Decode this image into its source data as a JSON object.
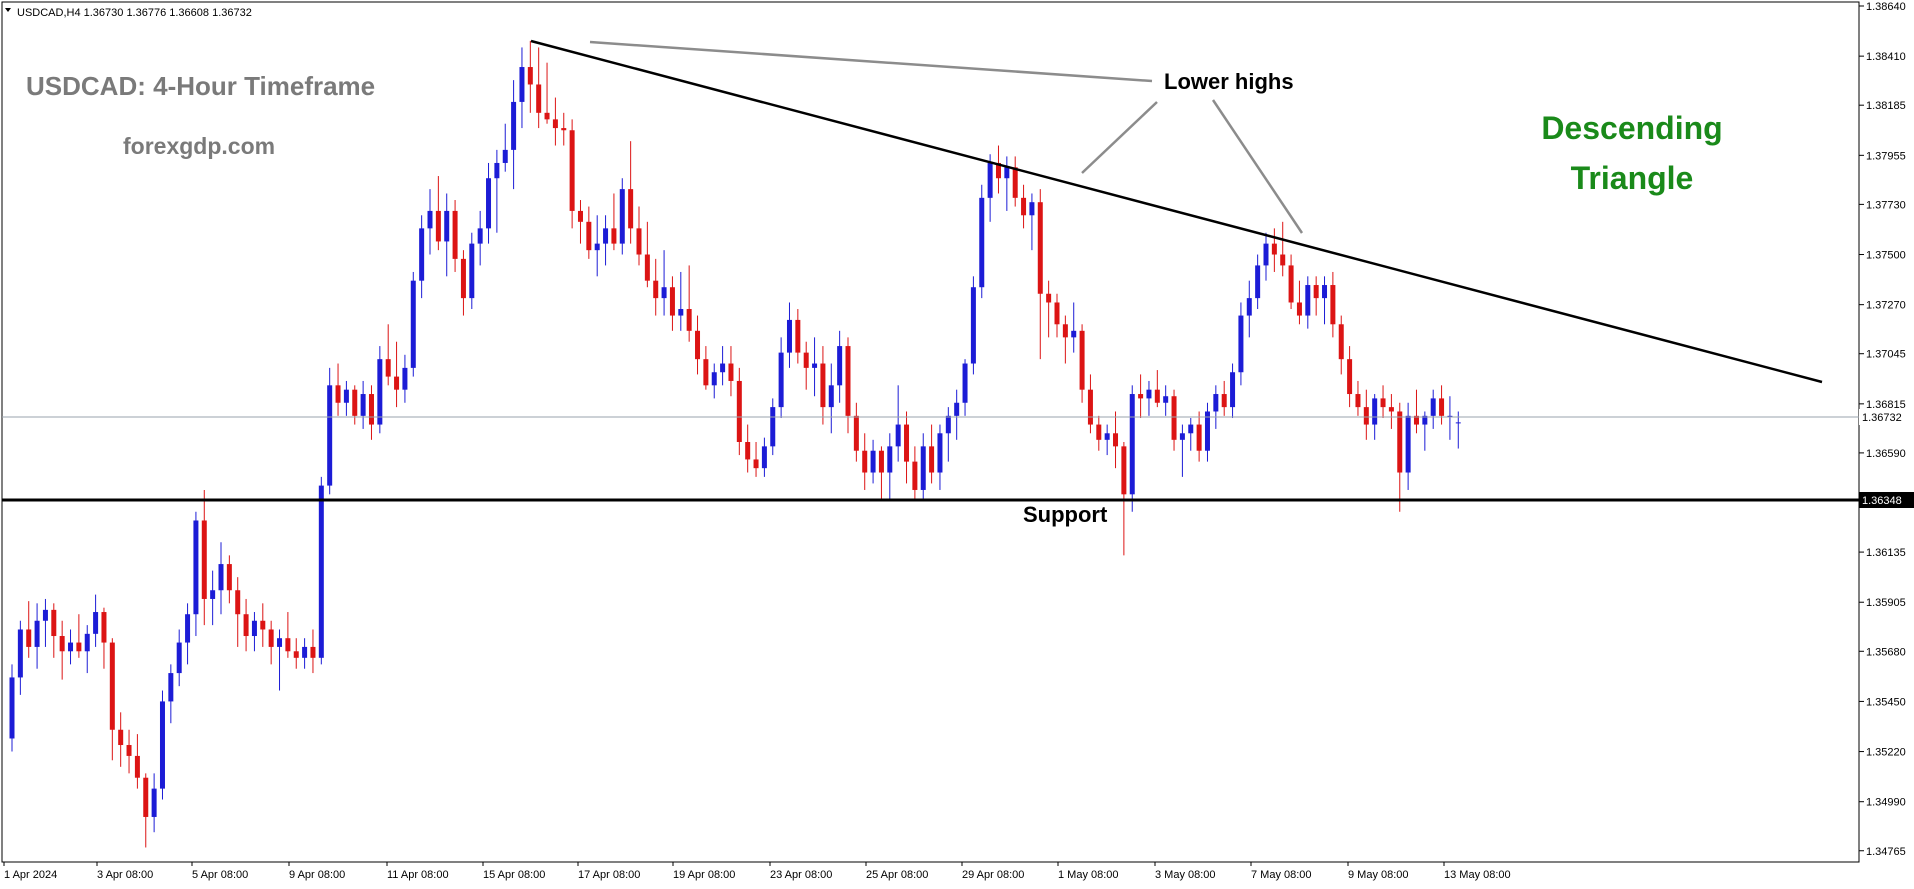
{
  "header": {
    "symbol_info": "USDCAD,H4  1.36730 1.36776 1.36608 1.36732"
  },
  "annotations": {
    "title": "USDCAD: 4-Hour Timeframe",
    "site": "forexgdp.com",
    "pattern_line1": "Descending",
    "pattern_line2": "Triangle",
    "lower_highs": "Lower highs",
    "support": "Support"
  },
  "colors": {
    "bull": "#1c1cd6",
    "bear": "#dc1414",
    "pattern_text": "#1a8a1a",
    "title_text": "#7a7a7a",
    "axis": "#000000"
  },
  "chart_data": {
    "type": "candlestick",
    "symbol": "USDCAD",
    "timeframe": "H4",
    "ylim": [
      1.3465,
      1.3865
    ],
    "y_ticks": [
      "1.38640",
      "1.38410",
      "1.38185",
      "1.37955",
      "1.37730",
      "1.37500",
      "1.37270",
      "1.37045",
      "1.36815",
      "1.36590",
      "1.36135",
      "1.35905",
      "1.35680",
      "1.35450",
      "1.35220",
      "1.34990",
      "1.34765"
    ],
    "x_ticks": [
      "1 Apr 2024",
      "3 Apr 08:00",
      "5 Apr 08:00",
      "9 Apr 08:00",
      "11 Apr 08:00",
      "15 Apr 08:00",
      "17 Apr 08:00",
      "19 Apr 08:00",
      "23 Apr 08:00",
      "25 Apr 08:00",
      "29 Apr 08:00",
      "1 May 08:00",
      "3 May 08:00",
      "7 May 08:00",
      "9 May 08:00",
      "13 May 08:00"
    ],
    "current_price": "1.36732",
    "support_level": "1.36348",
    "candles": [
      [
        1.3528,
        1.3562,
        1.3522,
        1.3556
      ],
      [
        1.3556,
        1.3582,
        1.3548,
        1.3578
      ],
      [
        1.3578,
        1.3591,
        1.3565,
        1.357
      ],
      [
        1.357,
        1.359,
        1.356,
        1.3582
      ],
      [
        1.3582,
        1.3592,
        1.357,
        1.3587
      ],
      [
        1.3587,
        1.359,
        1.3565,
        1.3575
      ],
      [
        1.3575,
        1.3582,
        1.3555,
        1.3568
      ],
      [
        1.3568,
        1.3578,
        1.3562,
        1.3572
      ],
      [
        1.3572,
        1.3585,
        1.3565,
        1.3568
      ],
      [
        1.3568,
        1.358,
        1.3558,
        1.3576
      ],
      [
        1.3576,
        1.3594,
        1.357,
        1.3586
      ],
      [
        1.3586,
        1.3588,
        1.356,
        1.3572
      ],
      [
        1.3572,
        1.3574,
        1.3518,
        1.3532
      ],
      [
        1.3532,
        1.354,
        1.3515,
        1.3525
      ],
      [
        1.3525,
        1.3532,
        1.3512,
        1.352
      ],
      [
        1.352,
        1.353,
        1.3505,
        1.351
      ],
      [
        1.351,
        1.3512,
        1.3478,
        1.3492
      ],
      [
        1.3492,
        1.3512,
        1.3485,
        1.3505
      ],
      [
        1.3505,
        1.355,
        1.35,
        1.3545
      ],
      [
        1.3545,
        1.3562,
        1.3535,
        1.3558
      ],
      [
        1.3558,
        1.3578,
        1.3552,
        1.3572
      ],
      [
        1.3572,
        1.359,
        1.3562,
        1.3585
      ],
      [
        1.3585,
        1.3632,
        1.3575,
        1.3628
      ],
      [
        1.3628,
        1.3642,
        1.358,
        1.3592
      ],
      [
        1.3592,
        1.3605,
        1.358,
        1.3596
      ],
      [
        1.3596,
        1.3618,
        1.3585,
        1.3608
      ],
      [
        1.3608,
        1.3612,
        1.359,
        1.3596
      ],
      [
        1.3596,
        1.3602,
        1.357,
        1.3585
      ],
      [
        1.3585,
        1.3592,
        1.3568,
        1.3575
      ],
      [
        1.3575,
        1.3586,
        1.3568,
        1.3582
      ],
      [
        1.3582,
        1.359,
        1.357,
        1.3578
      ],
      [
        1.3578,
        1.3582,
        1.3562,
        1.357
      ],
      [
        1.357,
        1.3578,
        1.355,
        1.3574
      ],
      [
        1.3574,
        1.3586,
        1.3565,
        1.3568
      ],
      [
        1.3568,
        1.3574,
        1.356,
        1.3565
      ],
      [
        1.3565,
        1.3574,
        1.356,
        1.357
      ],
      [
        1.357,
        1.3578,
        1.3558,
        1.3565
      ],
      [
        1.3565,
        1.3648,
        1.3562,
        1.3644
      ],
      [
        1.3644,
        1.3698,
        1.364,
        1.369
      ],
      [
        1.369,
        1.37,
        1.3676,
        1.3682
      ],
      [
        1.3682,
        1.3692,
        1.3676,
        1.3688
      ],
      [
        1.3688,
        1.369,
        1.3672,
        1.3676
      ],
      [
        1.3676,
        1.3692,
        1.367,
        1.3686
      ],
      [
        1.3686,
        1.369,
        1.3665,
        1.3672
      ],
      [
        1.3672,
        1.3708,
        1.3668,
        1.3702
      ],
      [
        1.3702,
        1.3718,
        1.369,
        1.3694
      ],
      [
        1.3694,
        1.371,
        1.368,
        1.3688
      ],
      [
        1.3688,
        1.3704,
        1.3682,
        1.3698
      ],
      [
        1.3698,
        1.3742,
        1.3694,
        1.3738
      ],
      [
        1.3738,
        1.3768,
        1.373,
        1.3762
      ],
      [
        1.3762,
        1.378,
        1.375,
        1.377
      ],
      [
        1.377,
        1.3786,
        1.3752,
        1.3756
      ],
      [
        1.3756,
        1.3778,
        1.374,
        1.377
      ],
      [
        1.377,
        1.3775,
        1.3742,
        1.3748
      ],
      [
        1.3748,
        1.3752,
        1.3722,
        1.373
      ],
      [
        1.373,
        1.376,
        1.3725,
        1.3755
      ],
      [
        1.3755,
        1.377,
        1.3745,
        1.3762
      ],
      [
        1.3762,
        1.3792,
        1.3755,
        1.3785
      ],
      [
        1.3785,
        1.3798,
        1.376,
        1.3792
      ],
      [
        1.3792,
        1.381,
        1.3788,
        1.3798
      ],
      [
        1.3798,
        1.383,
        1.378,
        1.382
      ],
      [
        1.382,
        1.3845,
        1.3808,
        1.3836
      ],
      [
        1.3836,
        1.3848,
        1.3815,
        1.3828
      ],
      [
        1.3828,
        1.3845,
        1.3808,
        1.3815
      ],
      [
        1.3815,
        1.3838,
        1.381,
        1.3812
      ],
      [
        1.3812,
        1.3822,
        1.38,
        1.3808
      ],
      [
        1.3808,
        1.3815,
        1.38,
        1.3807
      ],
      [
        1.3807,
        1.3812,
        1.3762,
        1.377
      ],
      [
        1.377,
        1.3775,
        1.3755,
        1.3765
      ],
      [
        1.3765,
        1.3772,
        1.3748,
        1.3752
      ],
      [
        1.3752,
        1.3768,
        1.374,
        1.3755
      ],
      [
        1.3755,
        1.3768,
        1.3745,
        1.3762
      ],
      [
        1.3762,
        1.3778,
        1.3752,
        1.3755
      ],
      [
        1.3755,
        1.3785,
        1.375,
        1.378
      ],
      [
        1.378,
        1.3802,
        1.3755,
        1.3762
      ],
      [
        1.3762,
        1.3772,
        1.3745,
        1.375
      ],
      [
        1.375,
        1.3765,
        1.3735,
        1.3738
      ],
      [
        1.3738,
        1.3748,
        1.3722,
        1.373
      ],
      [
        1.373,
        1.3752,
        1.3722,
        1.3735
      ],
      [
        1.3735,
        1.374,
        1.3715,
        1.3722
      ],
      [
        1.3722,
        1.3742,
        1.3715,
        1.3725
      ],
      [
        1.3725,
        1.3745,
        1.371,
        1.3715
      ],
      [
        1.3715,
        1.3722,
        1.3695,
        1.3702
      ],
      [
        1.3702,
        1.3708,
        1.3688,
        1.369
      ],
      [
        1.369,
        1.37,
        1.3684,
        1.3696
      ],
      [
        1.3696,
        1.3708,
        1.369,
        1.37
      ],
      [
        1.37,
        1.3708,
        1.3685,
        1.3692
      ],
      [
        1.3692,
        1.3698,
        1.3658,
        1.3664
      ],
      [
        1.3664,
        1.3672,
        1.365,
        1.3656
      ],
      [
        1.3656,
        1.3664,
        1.3648,
        1.3652
      ],
      [
        1.3652,
        1.3666,
        1.3648,
        1.3662
      ],
      [
        1.3662,
        1.3684,
        1.3658,
        1.368
      ],
      [
        1.368,
        1.3712,
        1.3675,
        1.3705
      ],
      [
        1.3705,
        1.3728,
        1.3698,
        1.372
      ],
      [
        1.372,
        1.3725,
        1.37,
        1.3705
      ],
      [
        1.3705,
        1.371,
        1.3688,
        1.3698
      ],
      [
        1.3698,
        1.3712,
        1.3685,
        1.37
      ],
      [
        1.37,
        1.3708,
        1.3672,
        1.368
      ],
      [
        1.368,
        1.37,
        1.3668,
        1.369
      ],
      [
        1.369,
        1.3715,
        1.3682,
        1.3708
      ],
      [
        1.3708,
        1.3712,
        1.3668,
        1.3676
      ],
      [
        1.3676,
        1.3682,
        1.3655,
        1.366
      ],
      [
        1.366,
        1.3668,
        1.3642,
        1.365
      ],
      [
        1.365,
        1.3665,
        1.3645,
        1.366
      ],
      [
        1.366,
        1.3662,
        1.3638,
        1.365
      ],
      [
        1.365,
        1.3668,
        1.3638,
        1.3662
      ],
      [
        1.3662,
        1.369,
        1.3655,
        1.3672
      ],
      [
        1.3672,
        1.3678,
        1.3645,
        1.3655
      ],
      [
        1.3655,
        1.3662,
        1.3638,
        1.3642
      ],
      [
        1.3642,
        1.3668,
        1.3638,
        1.3662
      ],
      [
        1.3662,
        1.3672,
        1.3645,
        1.365
      ],
      [
        1.365,
        1.3672,
        1.3642,
        1.3668
      ],
      [
        1.3668,
        1.368,
        1.3655,
        1.3676
      ],
      [
        1.3676,
        1.3688,
        1.3665,
        1.3682
      ],
      [
        1.3682,
        1.3702,
        1.3676,
        1.37
      ],
      [
        1.37,
        1.374,
        1.3695,
        1.3735
      ],
      [
        1.3735,
        1.3782,
        1.373,
        1.3776
      ],
      [
        1.3776,
        1.3796,
        1.3765,
        1.3792
      ],
      [
        1.3792,
        1.38,
        1.3778,
        1.3785
      ],
      [
        1.3785,
        1.3795,
        1.377,
        1.379
      ],
      [
        1.379,
        1.3795,
        1.3772,
        1.3776
      ],
      [
        1.3776,
        1.3782,
        1.3762,
        1.3768
      ],
      [
        1.3768,
        1.3778,
        1.3752,
        1.3774
      ],
      [
        1.3774,
        1.378,
        1.3702,
        1.3732
      ],
      [
        1.3732,
        1.3738,
        1.3712,
        1.3728
      ],
      [
        1.3728,
        1.3732,
        1.3712,
        1.3718
      ],
      [
        1.3718,
        1.3722,
        1.37,
        1.3712
      ],
      [
        1.3712,
        1.3728,
        1.3705,
        1.3715
      ],
      [
        1.3715,
        1.3718,
        1.3682,
        1.3688
      ],
      [
        1.3688,
        1.3695,
        1.3668,
        1.3672
      ],
      [
        1.3672,
        1.3676,
        1.366,
        1.3665
      ],
      [
        1.3665,
        1.3672,
        1.3658,
        1.3668
      ],
      [
        1.3668,
        1.3678,
        1.3652,
        1.3662
      ],
      [
        1.3662,
        1.3664,
        1.3612,
        1.364
      ],
      [
        1.364,
        1.369,
        1.3632,
        1.3686
      ],
      [
        1.3686,
        1.3695,
        1.3675,
        1.3684
      ],
      [
        1.3684,
        1.3692,
        1.3676,
        1.3688
      ],
      [
        1.3688,
        1.3697,
        1.368,
        1.3682
      ],
      [
        1.3682,
        1.369,
        1.3676,
        1.3685
      ],
      [
        1.3685,
        1.3688,
        1.366,
        1.3665
      ],
      [
        1.3665,
        1.3672,
        1.3648,
        1.3668
      ],
      [
        1.3668,
        1.3675,
        1.366,
        1.3672
      ],
      [
        1.3672,
        1.3678,
        1.3655,
        1.366
      ],
      [
        1.366,
        1.3682,
        1.3655,
        1.3678
      ],
      [
        1.3678,
        1.369,
        1.367,
        1.3686
      ],
      [
        1.3686,
        1.3692,
        1.3676,
        1.368
      ],
      [
        1.368,
        1.37,
        1.3675,
        1.3696
      ],
      [
        1.3696,
        1.3728,
        1.369,
        1.3722
      ],
      [
        1.3722,
        1.3738,
        1.3712,
        1.373
      ],
      [
        1.373,
        1.375,
        1.3725,
        1.3745
      ],
      [
        1.3745,
        1.376,
        1.3738,
        1.3755
      ],
      [
        1.3755,
        1.3762,
        1.3742,
        1.375
      ],
      [
        1.375,
        1.3765,
        1.374,
        1.3745
      ],
      [
        1.3745,
        1.375,
        1.3725,
        1.3728
      ],
      [
        1.3728,
        1.3738,
        1.3718,
        1.3722
      ],
      [
        1.3722,
        1.374,
        1.3716,
        1.3736
      ],
      [
        1.3736,
        1.374,
        1.3722,
        1.373
      ],
      [
        1.373,
        1.374,
        1.3718,
        1.3736
      ],
      [
        1.3736,
        1.3742,
        1.3712,
        1.3718
      ],
      [
        1.3718,
        1.3722,
        1.3695,
        1.3702
      ],
      [
        1.3702,
        1.3708,
        1.368,
        1.3686
      ],
      [
        1.3686,
        1.3692,
        1.3676,
        1.368
      ],
      [
        1.368,
        1.3688,
        1.3665,
        1.3672
      ],
      [
        1.3672,
        1.3686,
        1.3665,
        1.3684
      ],
      [
        1.3684,
        1.369,
        1.3675,
        1.368
      ],
      [
        1.368,
        1.3686,
        1.367,
        1.3678
      ],
      [
        1.3678,
        1.3682,
        1.3632,
        1.365
      ],
      [
        1.365,
        1.3682,
        1.3642,
        1.3676
      ],
      [
        1.3676,
        1.3688,
        1.3668,
        1.3672
      ],
      [
        1.3672,
        1.3678,
        1.366,
        1.3676
      ],
      [
        1.3676,
        1.3688,
        1.367,
        1.3684
      ],
      [
        1.3684,
        1.369,
        1.3672,
        1.3676
      ],
      [
        1.3676,
        1.3685,
        1.3665,
        1.3676
      ],
      [
        1.3673,
        1.3678,
        1.3661,
        1.3673
      ]
    ]
  }
}
